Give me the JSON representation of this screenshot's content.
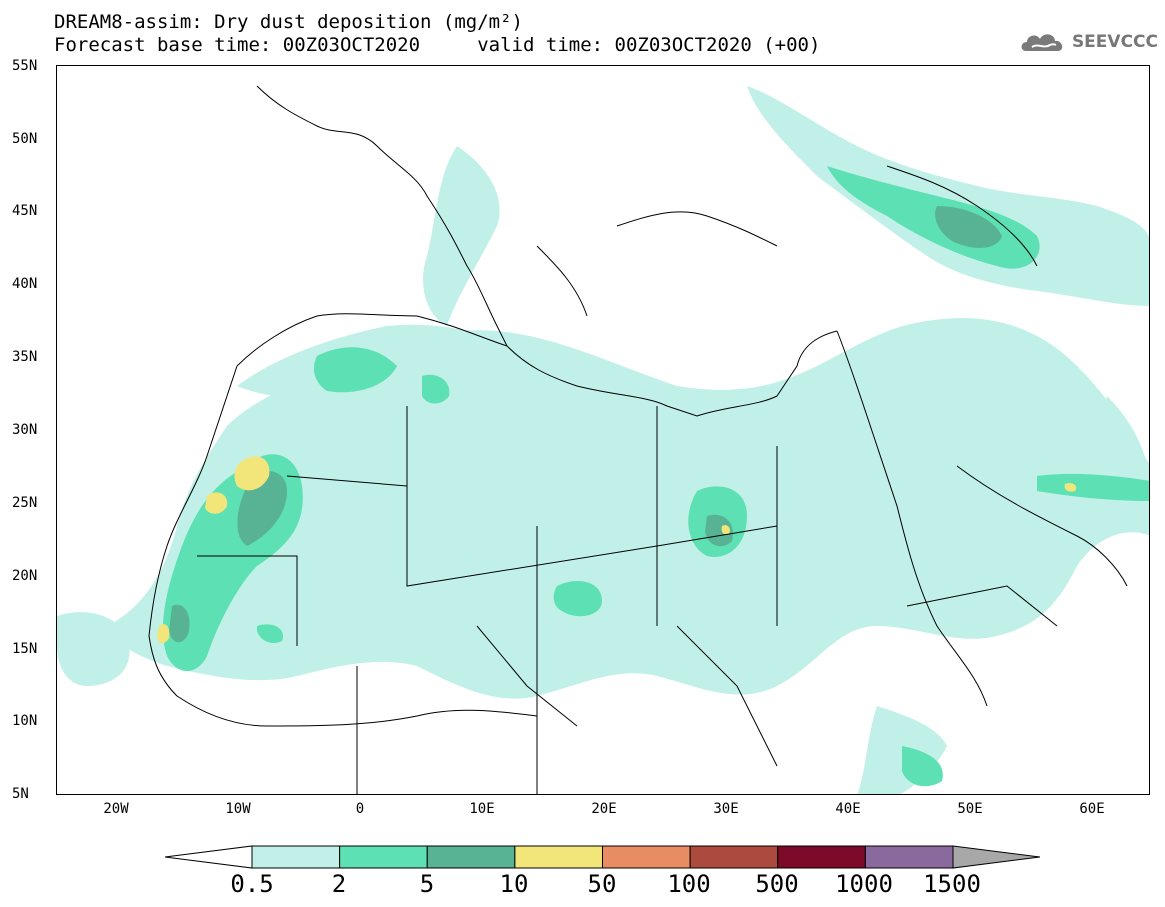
{
  "title_line1": "DREAM8-assim: Dry dust deposition (mg/m²)",
  "title_line2": "Forecast base time: 00Z03OCT2020     valid time: 00Z03OCT2020 (+00)",
  "logo_text": "SEEVCCC",
  "lat_labels": [
    "55N",
    "50N",
    "45N",
    "40N",
    "35N",
    "30N",
    "25N",
    "20N",
    "15N",
    "10N",
    "5N"
  ],
  "lon_labels": [
    "20W",
    "10W",
    "0",
    "10E",
    "20E",
    "30E",
    "40E",
    "50E",
    "60E"
  ],
  "colorbar": {
    "labels": [
      "0.5",
      "2",
      "5",
      "10",
      "50",
      "100",
      "500",
      "1000",
      "1500"
    ],
    "colors": [
      "#ffffff",
      "#c0f0e8",
      "#5de0b4",
      "#58b394",
      "#f2e67a",
      "#e88c64",
      "#ac4b3d",
      "#7d0a29",
      "#8a6a9e",
      "#a8a8a8"
    ]
  },
  "map": {
    "projection": "cylindrical",
    "lon_range": [
      -25,
      65
    ],
    "lat_range": [
      5,
      55
    ]
  }
}
